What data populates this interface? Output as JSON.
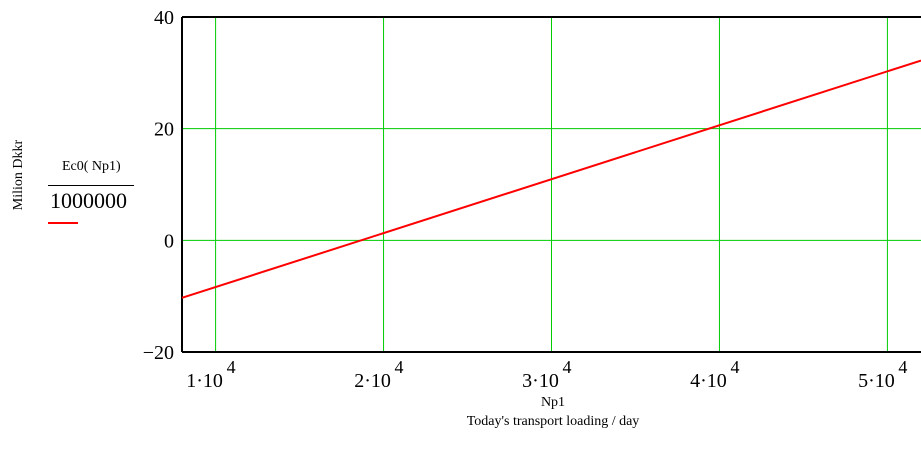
{
  "chart_data": {
    "type": "line",
    "xlabel_var": "Np1",
    "xlabel": "Today's transport loading / day",
    "ylabel": "Milion Dkkr",
    "legend_expr": "Ec0( Np1)",
    "legend_denom": "1000000",
    "xlim": [
      8000,
      52000
    ],
    "ylim": [
      -20,
      40
    ],
    "x_ticks": [
      {
        "value": 10000,
        "label": "1·10",
        "exp": "4"
      },
      {
        "value": 20000,
        "label": "2·10",
        "exp": "4"
      },
      {
        "value": 30000,
        "label": "3·10",
        "exp": "4"
      },
      {
        "value": 40000,
        "label": "4·10",
        "exp": "4"
      },
      {
        "value": 50000,
        "label": "5·10",
        "exp": "4"
      }
    ],
    "y_ticks": [
      {
        "value": -20,
        "label": "−20"
      },
      {
        "value": 0,
        "label": "0"
      },
      {
        "value": 20,
        "label": "20"
      },
      {
        "value": 40,
        "label": "40"
      }
    ],
    "grid": true,
    "series": [
      {
        "color": "#ff0000",
        "x": [
          8000,
          52000
        ],
        "y": [
          -10.3,
          32.2
        ]
      }
    ],
    "grid_color": "#00cc00"
  }
}
